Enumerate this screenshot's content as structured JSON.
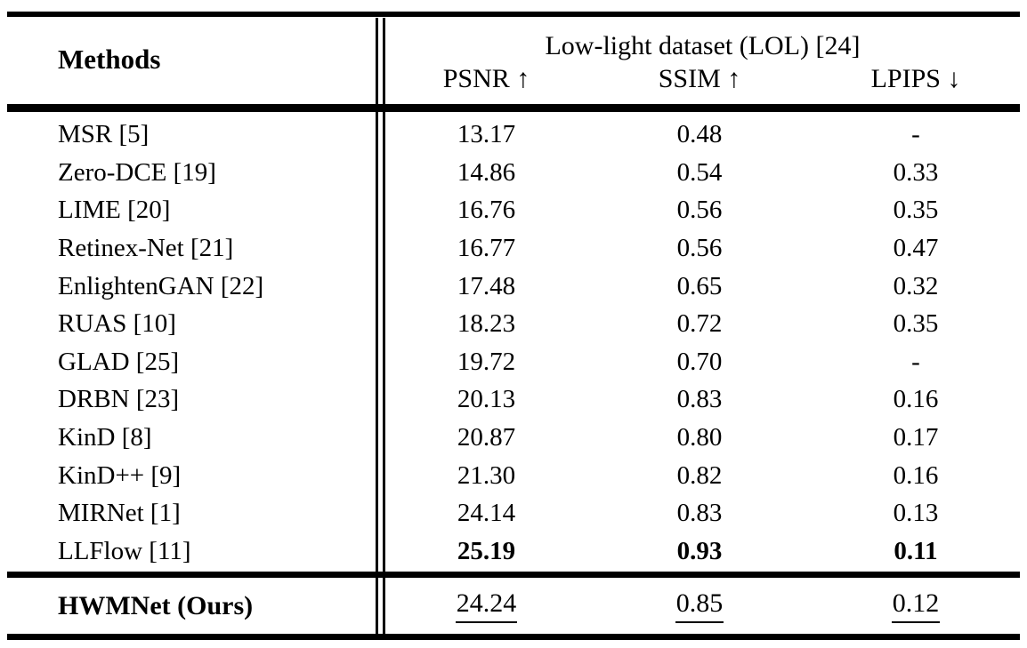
{
  "table": {
    "methods_header": "Methods",
    "group_header": "Low-light dataset (LOL) [24]",
    "columns": [
      "PSNR ↑",
      "SSIM ↑",
      "LPIPS ↓"
    ],
    "rows": [
      {
        "method": "MSR [5]",
        "psnr": "13.17",
        "ssim": "0.48",
        "lpips": "-",
        "bold": false
      },
      {
        "method": "Zero-DCE [19]",
        "psnr": "14.86",
        "ssim": "0.54",
        "lpips": "0.33",
        "bold": false
      },
      {
        "method": "LIME [20]",
        "psnr": "16.76",
        "ssim": "0.56",
        "lpips": "0.35",
        "bold": false
      },
      {
        "method": "Retinex-Net [21]",
        "psnr": "16.77",
        "ssim": "0.56",
        "lpips": "0.47",
        "bold": false
      },
      {
        "method": "EnlightenGAN [22]",
        "psnr": "17.48",
        "ssim": "0.65",
        "lpips": "0.32",
        "bold": false
      },
      {
        "method": "RUAS [10]",
        "psnr": "18.23",
        "ssim": "0.72",
        "lpips": "0.35",
        "bold": false
      },
      {
        "method": "GLAD [25]",
        "psnr": "19.72",
        "ssim": "0.70",
        "lpips": "-",
        "bold": false
      },
      {
        "method": "DRBN [23]",
        "psnr": "20.13",
        "ssim": "0.83",
        "lpips": "0.16",
        "bold": false
      },
      {
        "method": "KinD [8]",
        "psnr": "20.87",
        "ssim": "0.80",
        "lpips": "0.17",
        "bold": false
      },
      {
        "method": "KinD++ [9]",
        "psnr": "21.30",
        "ssim": "0.82",
        "lpips": "0.16",
        "bold": false
      },
      {
        "method": "MIRNet [1]",
        "psnr": "24.14",
        "ssim": "0.83",
        "lpips": "0.13",
        "bold": false
      },
      {
        "method": "LLFlow [11]",
        "psnr": "25.19",
        "ssim": "0.93",
        "lpips": "0.11",
        "bold": true
      }
    ],
    "footer": {
      "method": "HWMNet (Ours)",
      "psnr": "24.24",
      "ssim": "0.85",
      "lpips": "0.12"
    }
  },
  "colors": {
    "text": "#000000",
    "background": "#ffffff",
    "rule": "#000000"
  }
}
